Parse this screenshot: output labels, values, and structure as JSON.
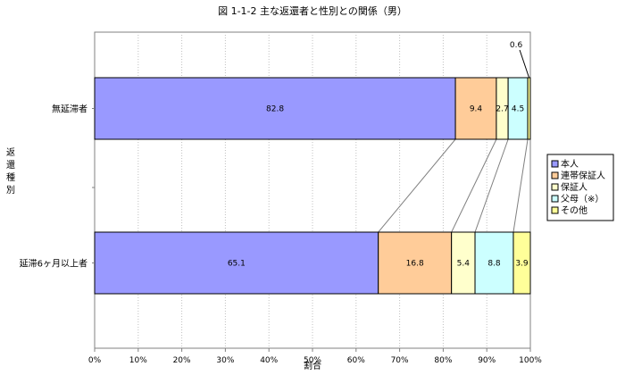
{
  "chart_data": {
    "type": "bar",
    "orientation": "horizontal",
    "stacked": true,
    "title": "図 1-1-2  主な返還者と性別との関係（男）",
    "xlabel": "割合",
    "ylabel": "返還種別",
    "xlim": [
      0,
      100
    ],
    "xticks": [
      "0%",
      "10%",
      "20%",
      "30%",
      "40%",
      "50%",
      "60%",
      "70%",
      "80%",
      "90%",
      "100%"
    ],
    "grid": true,
    "legend_position": "right",
    "categories": [
      "無延滞者",
      "延滞6ヶ月以上者"
    ],
    "series": [
      {
        "name": "本人",
        "color": "#9999ff",
        "values": [
          82.8,
          65.1
        ]
      },
      {
        "name": "連帯保証人",
        "color": "#ffcc99",
        "values": [
          9.4,
          16.8
        ]
      },
      {
        "name": "保証人",
        "color": "#ffffcc",
        "values": [
          2.7,
          5.4
        ]
      },
      {
        "name": "父母（※）",
        "color": "#ccffff",
        "values": [
          4.5,
          8.8
        ]
      },
      {
        "name": "その他",
        "color": "#ffff99",
        "values": [
          0.6,
          3.9
        ]
      }
    ]
  }
}
